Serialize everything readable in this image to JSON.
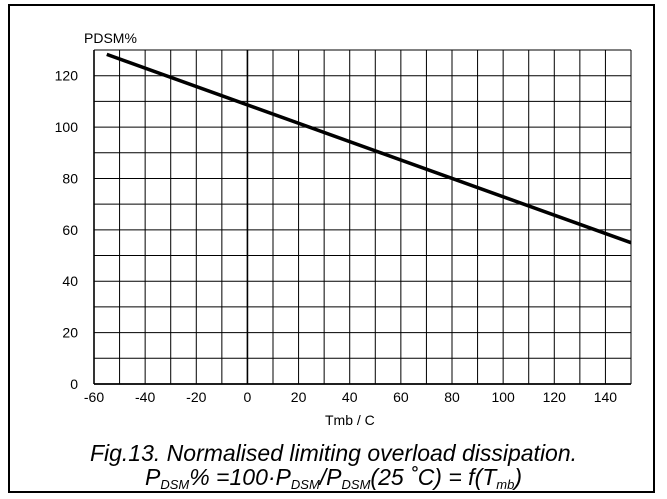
{
  "chart_data": {
    "type": "line",
    "title": "Fig.13.   Normalised limiting overload dissipation.",
    "subtitle_parts": {
      "p": "P",
      "sub_dsm": "DSM",
      "pct_eq": "% =100",
      "dot": "·",
      "slash": "/",
      "arg": "(25 ˚C) = f(T",
      "sub_mb": "mb",
      "close": ")"
    },
    "xlabel": "Tmb / C",
    "ylabel": "PDSM%",
    "xlim": [
      -60,
      150
    ],
    "ylim": [
      0,
      130
    ],
    "xticks": [
      -60,
      -40,
      -20,
      0,
      20,
      40,
      60,
      80,
      100,
      120,
      140
    ],
    "yticks": [
      0,
      20,
      40,
      60,
      80,
      100,
      120
    ],
    "grid": true,
    "series": [
      {
        "values": [
          {
            "x": -55,
            "y": 128.3
          },
          {
            "x": 150,
            "y": 55
          }
        ]
      }
    ],
    "colors": {
      "line": "#000000",
      "grid": "#000000",
      "background": "#ffffff"
    }
  }
}
